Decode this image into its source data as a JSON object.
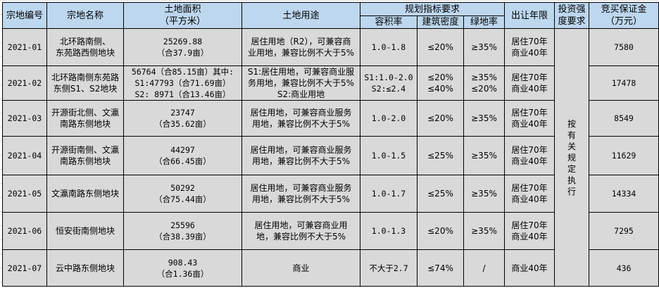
{
  "header": {
    "id": "宗地编号",
    "name": "宗地名称",
    "area": "土地面积\n（平方米）",
    "use": "土地用途",
    "planning": "规划指标要求",
    "far": "容积率",
    "density": "建筑密度",
    "green": "绿地率",
    "term": "出让年限",
    "investment": "投资强\n度要求",
    "deposit": "竞买保证金\n（万元）"
  },
  "investment_note": "按\n有\n关\n规\n定\n执\n行",
  "rows": [
    {
      "id": "2021-01",
      "name": "北环路南侧、\n东苑路西侧地块",
      "area": "25269.88\n（合37.9亩）",
      "use": "居住用地（R2），可兼容商\n业用地，兼容比例不大于5%",
      "far": "1.0-1.8",
      "density": "≤20%",
      "green": "≥35%",
      "term": "居住70年\n商业40年",
      "deposit": "7580"
    },
    {
      "id": "2021-02",
      "name": "北环路南侧东苑路\n东侧S1、S2地块",
      "area": "56764（合85.15亩）其中:\nS1:47793（合71.69亩）\nS2: 8971（合13.46亩）",
      "use": "S1:居住用地，可兼容商业服\n务用地，兼容比例不大于5%\nS2:商业用地",
      "far": "S1:1.0-2.0\nS2:≤2.4",
      "density": "≤20%\n≤40%",
      "green": "≥35%\n≤20%",
      "term": "居住70年\n商业40年",
      "deposit": "17478"
    },
    {
      "id": "2021-03",
      "name": "开源街北侧、文瀛\n南路东侧地块",
      "area": "23747\n（合35.62亩）",
      "use": "居住用地，可兼容商业服务\n用地，兼容比例不大于5%",
      "far": "1.0-2.0",
      "density": "≤20%",
      "green": "≥35%",
      "term": "居住70年\n商业40年",
      "deposit": "8549"
    },
    {
      "id": "2021-04",
      "name": "开源街南侧、文瀛\n南路东侧地块",
      "area": "44297\n（合66.45亩）",
      "use": "居住用地，可兼容商业服务\n用地，兼容比例不大于5%",
      "far": "1.0-1.5",
      "density": "≤25%",
      "green": "≥35%",
      "term": "居住70年\n商业40年",
      "deposit": "11629"
    },
    {
      "id": "2021-05",
      "name": "文瀛南路东侧地块",
      "area": "50292\n（合75.44亩）",
      "use": "居住用地，可兼容商业服务\n用地，兼容比例不大于5%",
      "far": "1.0-1.7",
      "density": "≤25%",
      "green": "≥35%",
      "term": "居住70年\n商业40年",
      "deposit": "14334"
    },
    {
      "id": "2021-06",
      "name": "恒安街南侧地块",
      "area": "25596\n（合38.39亩）",
      "use": "居住用地，可兼容商业用\n地，兼容比例不大于5%",
      "far": "1.0-1.3",
      "density": "≤20%",
      "green": "≥35%",
      "term": "居住70年\n商业40年",
      "deposit": "7295"
    },
    {
      "id": "2021-07",
      "name": "云中路东侧地块",
      "area": "908.43\n（合1.36亩）",
      "use": "商业",
      "far": "不大于2.7",
      "density": "≤74%",
      "green": "/",
      "term": "商业40年",
      "deposit": "436"
    }
  ]
}
